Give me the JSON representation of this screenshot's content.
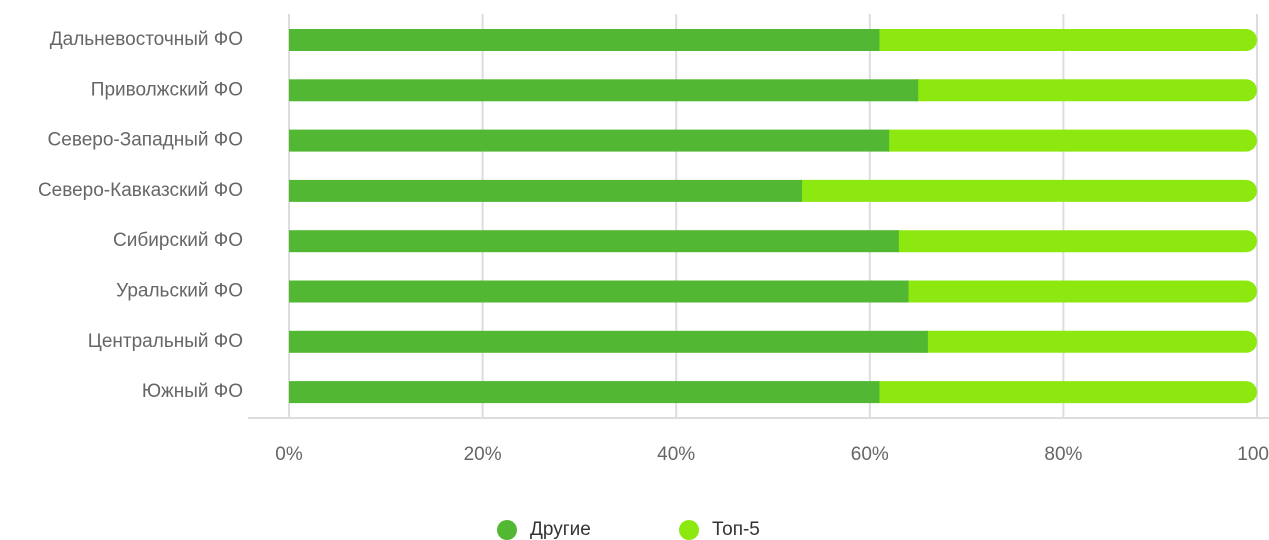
{
  "chart_data": {
    "type": "stacked_barh",
    "categories": [
      "Дальневосточный ФО",
      "Приволжский ФО",
      "Северо-Западный ФО",
      "Северо-Кавказский ФО",
      "Сибирский ФО",
      "Уральский ФО",
      "Центральный ФО",
      "Южный ФО"
    ],
    "series": [
      {
        "name": "Другие",
        "color": "#52b833",
        "values": [
          61,
          65,
          62,
          53,
          63,
          64,
          66,
          61
        ]
      },
      {
        "name": "Топ-5",
        "color": "#8de810",
        "values": [
          39,
          35,
          38,
          47,
          37,
          36,
          34,
          39
        ]
      }
    ],
    "xlim": [
      0,
      100
    ],
    "xticks": [
      {
        "value": 0,
        "label": "0%"
      },
      {
        "value": 20,
        "label": "20%"
      },
      {
        "value": 40,
        "label": "40%"
      },
      {
        "value": 60,
        "label": "60%"
      },
      {
        "value": 80,
        "label": "80%"
      },
      100
    ],
    "grid": true,
    "legend": "bottom"
  }
}
